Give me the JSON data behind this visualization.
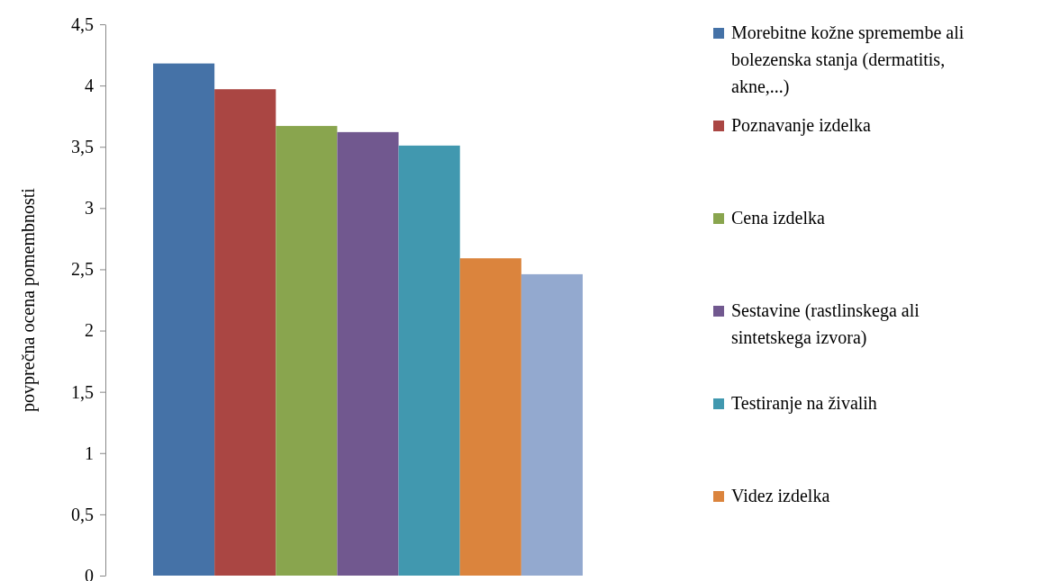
{
  "chart_data": {
    "type": "bar",
    "ylabel": "povprečna ocena pomembnosti",
    "categories": [
      null
    ],
    "series": [
      {
        "name": "Morebitne kožne spremembe ali bolezenska stanja (dermatitis, akne,...)",
        "color": "#4572a7",
        "values": [
          4.18
        ]
      },
      {
        "name": "Poznavanje izdelka",
        "color": "#aa4643",
        "values": [
          3.97
        ]
      },
      {
        "name": "Cena izdelka",
        "color": "#89a54e",
        "values": [
          3.67
        ]
      },
      {
        "name": "Sestavine (rastlinskega ali sintetskega izvora)",
        "color": "#71588f",
        "values": [
          3.62
        ]
      },
      {
        "name": "Testiranje na živalih",
        "color": "#4198af",
        "values": [
          3.51
        ]
      },
      {
        "name": "Videz izdelka",
        "color": "#db843d",
        "values": [
          2.59
        ]
      },
      {
        "color": "#93a9cf",
        "values": [
          2.46
        ]
      }
    ],
    "ylim": [
      0,
      4.5
    ],
    "yticks": [
      0,
      {
        "value": 0.5,
        "label": "0,5"
      },
      1,
      {
        "value": 1.5,
        "label": "1,5"
      },
      2,
      {
        "value": 2.5,
        "label": "2,5"
      },
      3,
      {
        "value": 3.5,
        "label": "3,5"
      },
      4,
      {
        "value": 4.5,
        "label": "4,5"
      }
    ],
    "grid": false,
    "legend": "right"
  }
}
